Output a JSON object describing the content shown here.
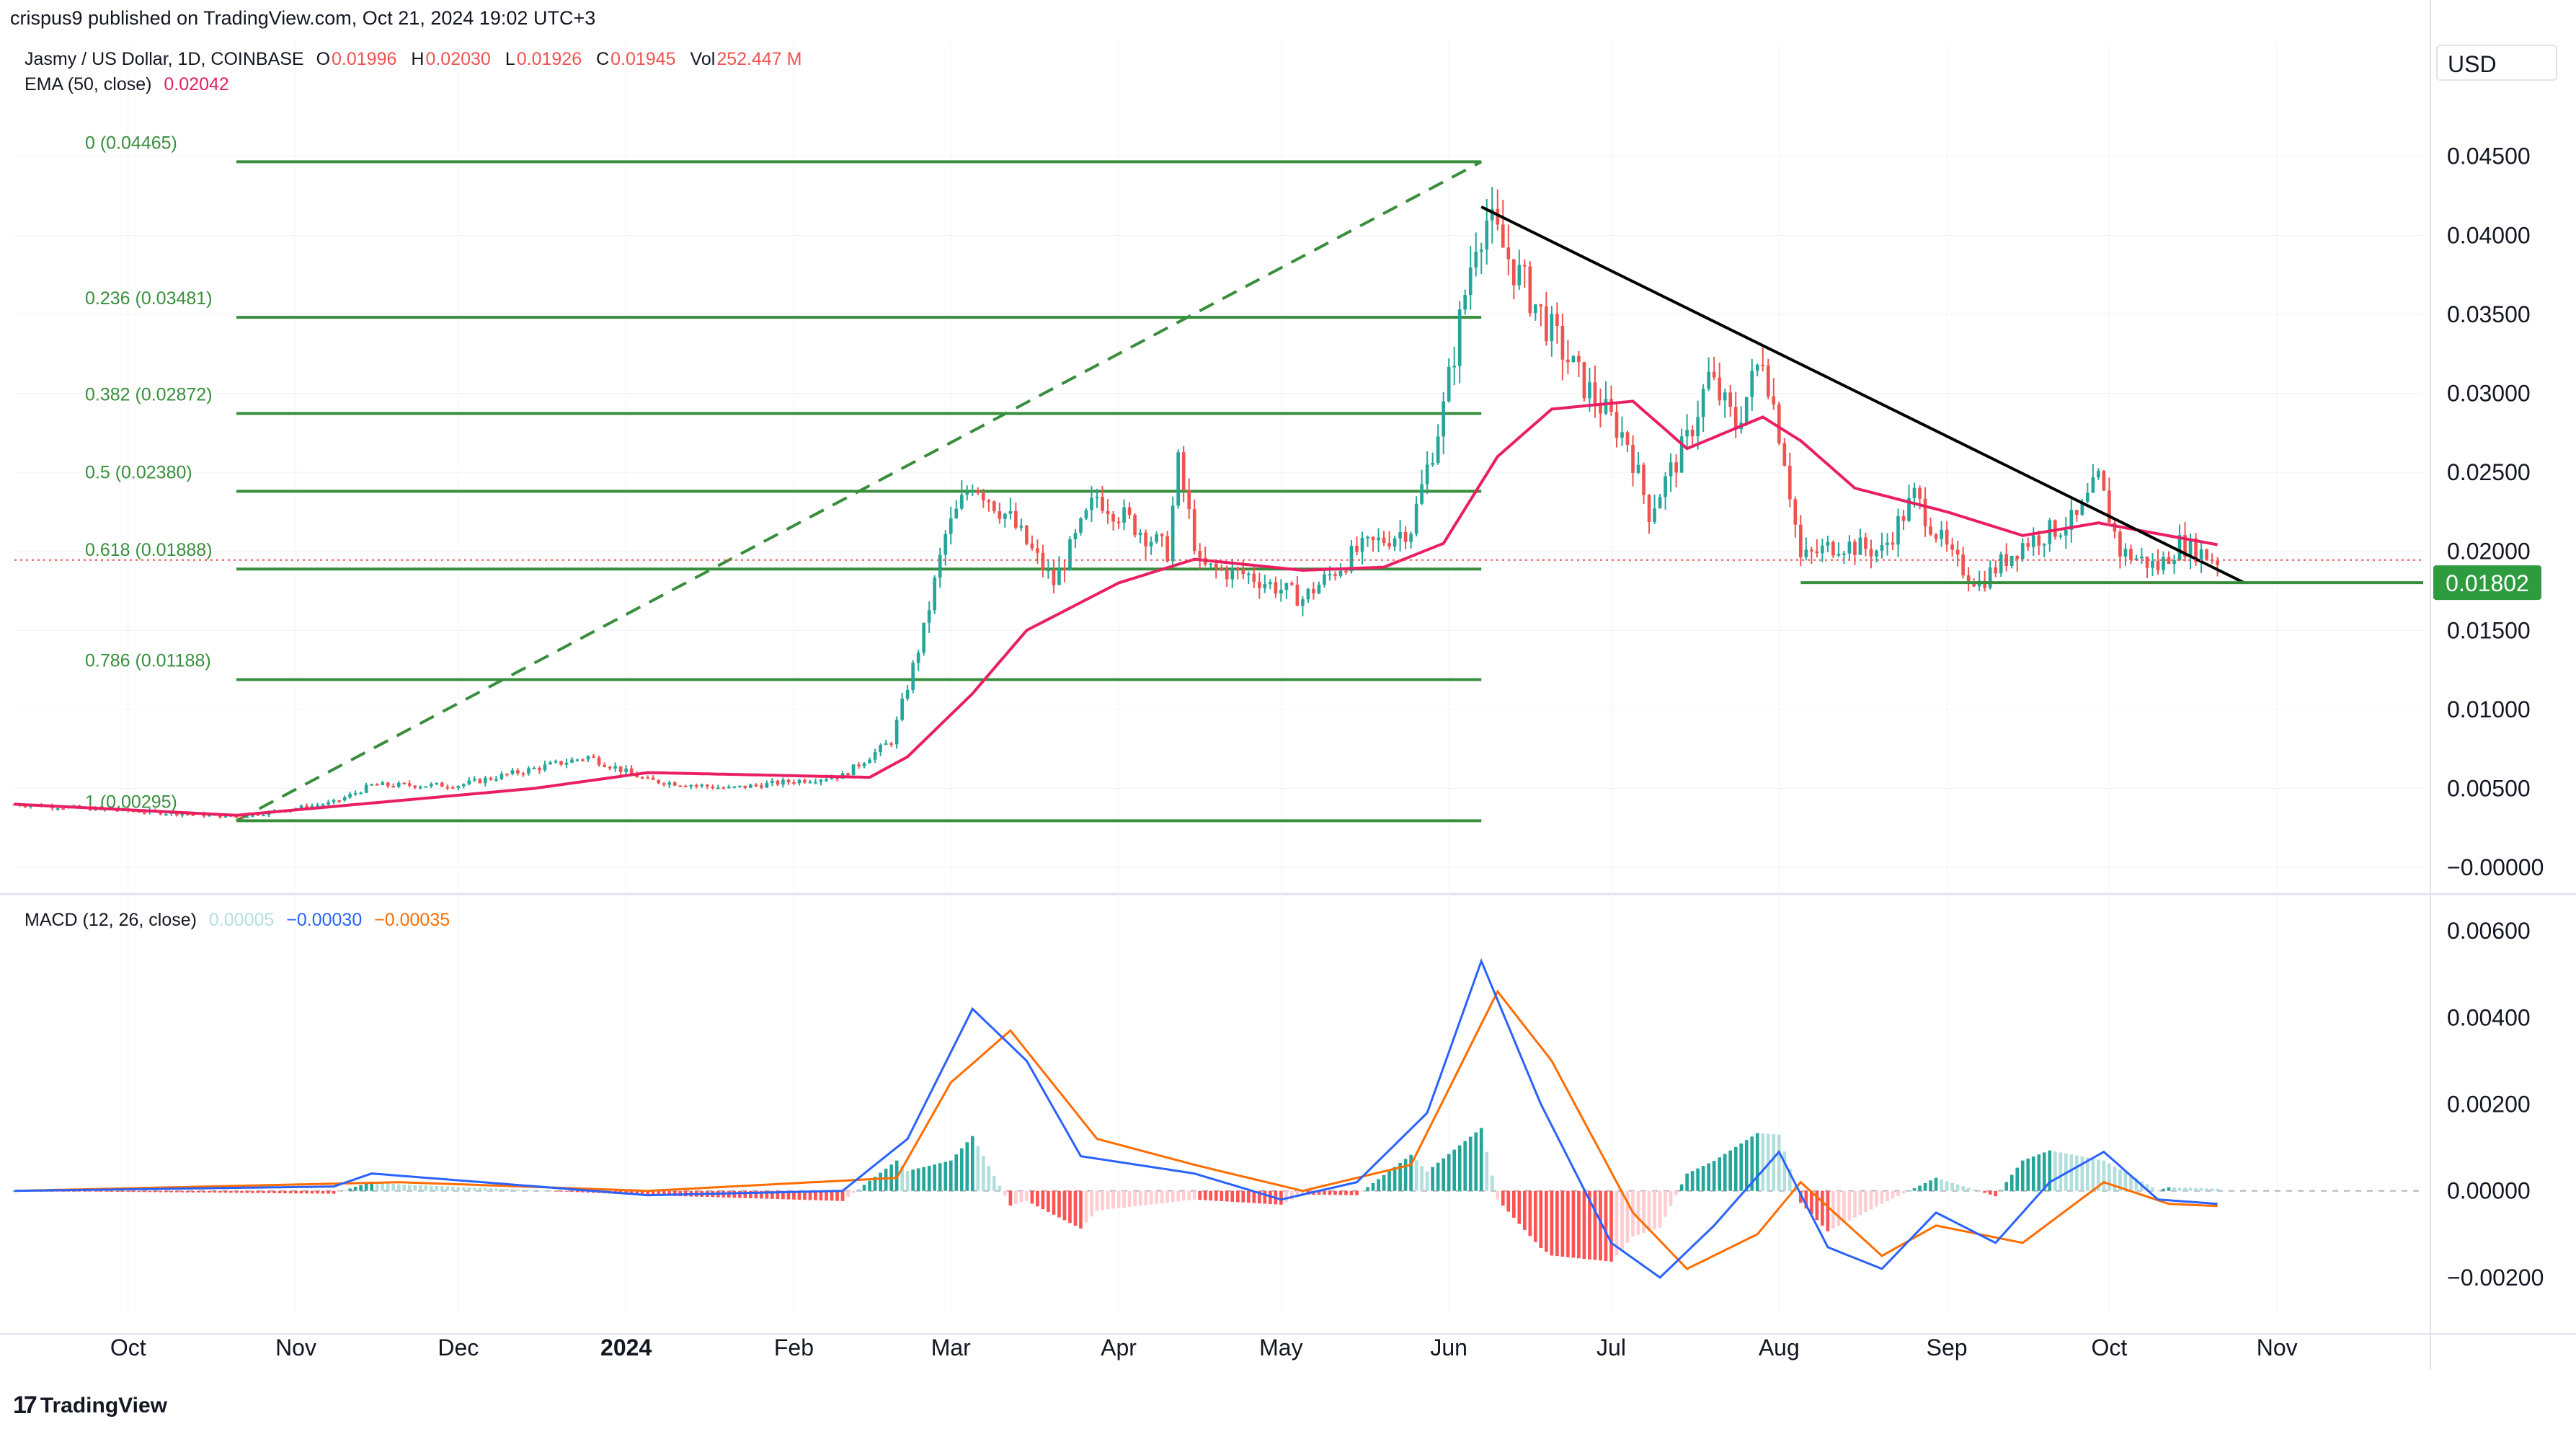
{
  "header": {
    "attribution": "crispus9 published on TradingView.com, Oct 21, 2024 19:02 UTC+3",
    "symbol": "Jasmy / US Dollar, 1D, COINBASE",
    "ohlc": [
      {
        "label": "O",
        "value": "0.01996"
      },
      {
        "label": "H",
        "value": "0.02030"
      },
      {
        "label": "L",
        "value": "0.01926"
      },
      {
        "label": "C",
        "value": "0.01945"
      },
      {
        "label": "Vol",
        "value": "252.447 M"
      }
    ],
    "ema_label": "EMA (50, close)",
    "ema_value": "0.02042",
    "macd_label": "MACD (12, 26, close)",
    "macd_values": [
      "0.00005",
      "−0.00030",
      "−0.00035"
    ],
    "currency_button": "USD",
    "logo_text": "TradingView"
  },
  "colors": {
    "up": "#26a69a",
    "down": "#ef5350",
    "ema": "#e91e63",
    "fib": "#388e3c",
    "trend": "#000000",
    "macd": "#2962ff",
    "signal": "#ff6d00",
    "hist_up_strong": "#26a69a",
    "hist_up_weak": "#b2dfdb",
    "hist_down_strong": "#ff5252",
    "hist_down_weak": "#ffcdd2",
    "price_line": "#ef5350",
    "support_tag": "#2e9b3e"
  },
  "chart_data": {
    "type": "candlestick",
    "price_axis": {
      "ticks": [
        "0.04500",
        "0.04000",
        "0.03500",
        "0.03000",
        "0.02500",
        "0.02000",
        "0.01500",
        "0.01000",
        "0.00500",
        "−0.00000"
      ],
      "tick_values": [
        0.045,
        0.04,
        0.035,
        0.03,
        0.025,
        0.02,
        0.015,
        0.01,
        0.005,
        0.0
      ],
      "range": [
        -0.001,
        0.0485
      ]
    },
    "macd_axis": {
      "ticks": [
        "0.00600",
        "0.00400",
        "0.00200",
        "0.00000",
        "−0.00200"
      ],
      "tick_values": [
        0.006,
        0.004,
        0.002,
        0.0,
        -0.002
      ],
      "range": [
        -0.0028,
        0.0066
      ]
    },
    "time_axis": {
      "labels": [
        {
          "text": "Oct",
          "date": "2023-10-01",
          "bold": false
        },
        {
          "text": "Nov",
          "date": "2023-11-01",
          "bold": false
        },
        {
          "text": "Dec",
          "date": "2023-12-01",
          "bold": false
        },
        {
          "text": "2024",
          "date": "2024-01-01",
          "bold": true
        },
        {
          "text": "Feb",
          "date": "2024-02-01",
          "bold": false
        },
        {
          "text": "Mar",
          "date": "2024-03-01",
          "bold": false
        },
        {
          "text": "Apr",
          "date": "2024-04-01",
          "bold": false
        },
        {
          "text": "May",
          "date": "2024-05-01",
          "bold": false
        },
        {
          "text": "Jun",
          "date": "2024-06-01",
          "bold": false
        },
        {
          "text": "Jul",
          "date": "2024-07-01",
          "bold": false
        },
        {
          "text": "Aug",
          "date": "2024-08-01",
          "bold": false
        },
        {
          "text": "Sep",
          "date": "2024-09-01",
          "bold": false
        },
        {
          "text": "Oct",
          "date": "2024-10-01",
          "bold": false
        },
        {
          "text": "Nov",
          "date": "2024-11-01",
          "bold": false
        }
      ],
      "range": [
        "2023-09-10",
        "2024-11-28"
      ]
    },
    "close_keypoints": [
      [
        "2023-09-10",
        0.004
      ],
      [
        "2023-10-21",
        0.0032
      ],
      [
        "2023-11-08",
        0.0041
      ],
      [
        "2023-11-15",
        0.0052
      ],
      [
        "2023-12-01",
        0.0052
      ],
      [
        "2023-12-25",
        0.007
      ],
      [
        "2024-01-05",
        0.0055
      ],
      [
        "2024-01-20",
        0.005
      ],
      [
        "2024-02-10",
        0.0058
      ],
      [
        "2024-02-19",
        0.008
      ],
      [
        "2024-02-25",
        0.015
      ],
      [
        "2024-02-29",
        0.021
      ],
      [
        "2024-03-05",
        0.0245
      ],
      [
        "2024-03-12",
        0.022
      ],
      [
        "2024-03-20",
        0.018
      ],
      [
        "2024-03-28",
        0.0235
      ],
      [
        "2024-04-10",
        0.02
      ],
      [
        "2024-04-12",
        0.0255
      ],
      [
        "2024-04-16",
        0.019
      ],
      [
        "2024-04-25",
        0.0185
      ],
      [
        "2024-05-05",
        0.017
      ],
      [
        "2024-05-15",
        0.02
      ],
      [
        "2024-05-25",
        0.0215
      ],
      [
        "2024-05-31",
        0.029
      ],
      [
        "2024-06-06",
        0.04
      ],
      [
        "2024-06-08",
        0.041
      ],
      [
        "2024-06-18",
        0.035
      ],
      [
        "2024-06-25",
        0.031
      ],
      [
        "2024-07-04",
        0.027
      ],
      [
        "2024-07-08",
        0.0225
      ],
      [
        "2024-07-15",
        0.027
      ],
      [
        "2024-07-19",
        0.031
      ],
      [
        "2024-07-24",
        0.028
      ],
      [
        "2024-07-29",
        0.0325
      ],
      [
        "2024-08-02",
        0.026
      ],
      [
        "2024-08-05",
        0.0195
      ],
      [
        "2024-08-12",
        0.0205
      ],
      [
        "2024-08-20",
        0.02
      ],
      [
        "2024-08-26",
        0.0235
      ],
      [
        "2024-09-02",
        0.0195
      ],
      [
        "2024-09-07",
        0.018
      ],
      [
        "2024-09-15",
        0.0205
      ],
      [
        "2024-09-25",
        0.022
      ],
      [
        "2024-09-29",
        0.0245
      ],
      [
        "2024-10-03",
        0.02
      ],
      [
        "2024-10-10",
        0.019
      ],
      [
        "2024-10-14",
        0.0205
      ],
      [
        "2024-10-21",
        0.01945
      ]
    ],
    "ema_keypoints": [
      [
        "2023-09-10",
        0.004
      ],
      [
        "2023-10-21",
        0.0033
      ],
      [
        "2023-12-15",
        0.005
      ],
      [
        "2024-01-05",
        0.006
      ],
      [
        "2024-02-15",
        0.0057
      ],
      [
        "2024-02-22",
        0.007
      ],
      [
        "2024-03-05",
        0.011
      ],
      [
        "2024-03-15",
        0.015
      ],
      [
        "2024-04-01",
        0.018
      ],
      [
        "2024-04-15",
        0.0195
      ],
      [
        "2024-05-05",
        0.0188
      ],
      [
        "2024-05-20",
        0.019
      ],
      [
        "2024-05-31",
        0.0205
      ],
      [
        "2024-06-10",
        0.026
      ],
      [
        "2024-06-20",
        0.029
      ],
      [
        "2024-07-05",
        0.0295
      ],
      [
        "2024-07-15",
        0.0265
      ],
      [
        "2024-07-29",
        0.0285
      ],
      [
        "2024-08-05",
        0.027
      ],
      [
        "2024-08-15",
        0.024
      ],
      [
        "2024-09-01",
        0.0225
      ],
      [
        "2024-09-15",
        0.021
      ],
      [
        "2024-09-29",
        0.0218
      ],
      [
        "2024-10-21",
        0.02042
      ]
    ],
    "macd_keypoints": [
      [
        "2023-09-10",
        0.0
      ],
      [
        "2023-11-08",
        0.0001
      ],
      [
        "2023-11-15",
        0.0004
      ],
      [
        "2024-01-05",
        -0.0001
      ],
      [
        "2024-02-10",
        0.0
      ],
      [
        "2024-02-22",
        0.0012
      ],
      [
        "2024-03-05",
        0.0042
      ],
      [
        "2024-03-15",
        0.003
      ],
      [
        "2024-03-25",
        0.0008
      ],
      [
        "2024-04-15",
        0.0004
      ],
      [
        "2024-05-01",
        -0.0002
      ],
      [
        "2024-05-15",
        0.0002
      ],
      [
        "2024-05-28",
        0.0018
      ],
      [
        "2024-06-07",
        0.0053
      ],
      [
        "2024-06-18",
        0.002
      ],
      [
        "2024-07-01",
        -0.0012
      ],
      [
        "2024-07-10",
        -0.002
      ],
      [
        "2024-07-20",
        -0.0008
      ],
      [
        "2024-08-01",
        0.0009
      ],
      [
        "2024-08-10",
        -0.0013
      ],
      [
        "2024-08-20",
        -0.0018
      ],
      [
        "2024-08-30",
        -0.0005
      ],
      [
        "2024-09-10",
        -0.0012
      ],
      [
        "2024-09-20",
        0.0002
      ],
      [
        "2024-09-30",
        0.0009
      ],
      [
        "2024-10-10",
        -0.0002
      ],
      [
        "2024-10-21",
        -0.0003
      ]
    ],
    "signal_keypoints": [
      [
        "2023-09-10",
        0.0
      ],
      [
        "2023-11-20",
        0.0002
      ],
      [
        "2024-01-05",
        0.0
      ],
      [
        "2024-02-20",
        0.0003
      ],
      [
        "2024-03-01",
        0.0025
      ],
      [
        "2024-03-12",
        0.0037
      ],
      [
        "2024-03-28",
        0.0012
      ],
      [
        "2024-04-15",
        0.0006
      ],
      [
        "2024-05-05",
        0.0
      ],
      [
        "2024-05-25",
        0.0006
      ],
      [
        "2024-06-10",
        0.0046
      ],
      [
        "2024-06-20",
        0.003
      ],
      [
        "2024-07-05",
        -0.0005
      ],
      [
        "2024-07-15",
        -0.0018
      ],
      [
        "2024-07-28",
        -0.001
      ],
      [
        "2024-08-05",
        0.0002
      ],
      [
        "2024-08-20",
        -0.0015
      ],
      [
        "2024-08-30",
        -0.0008
      ],
      [
        "2024-09-15",
        -0.0012
      ],
      [
        "2024-09-30",
        0.0002
      ],
      [
        "2024-10-12",
        -0.0003
      ],
      [
        "2024-10-21",
        -0.00035
      ]
    ],
    "fibonacci": {
      "start_date": "2023-10-21",
      "end_date": "2024-06-07",
      "levels": [
        {
          "ratio": "0",
          "label": "0 (0.04465)",
          "price": 0.04465
        },
        {
          "ratio": "0.236",
          "label": "0.236 (0.03481)",
          "price": 0.03481
        },
        {
          "ratio": "0.382",
          "label": "0.382 (0.02872)",
          "price": 0.02872
        },
        {
          "ratio": "0.5",
          "label": "0.5 (0.02380)",
          "price": 0.0238
        },
        {
          "ratio": "0.618",
          "label": "0.618 (0.01888)",
          "price": 0.01888
        },
        {
          "ratio": "0.786",
          "label": "0.786 (0.01188)",
          "price": 0.01188
        },
        {
          "ratio": "1",
          "label": "1 (0.00295)",
          "price": 0.00295
        }
      ]
    },
    "trendline": {
      "from": [
        "2024-06-07",
        0.0418
      ],
      "to": [
        "2024-10-26",
        0.018
      ]
    },
    "support_line": {
      "from": [
        "2024-08-05",
        0.01802
      ],
      "to": [
        "2024-11-28",
        0.01802
      ],
      "tag": "0.01802"
    },
    "last_price": 0.01945
  }
}
